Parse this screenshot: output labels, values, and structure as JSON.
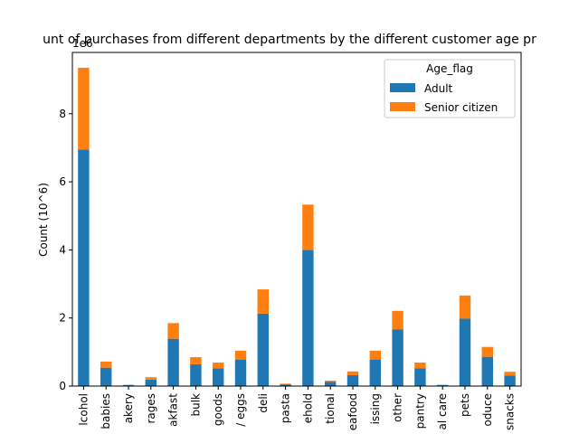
{
  "chart_data": {
    "type": "bar",
    "stacked": true,
    "title": "unt of purchases from different departments by the different customer age pr",
    "xlabel": "",
    "ylabel": "Count (10^6)",
    "y_offset_label": "1e6",
    "ylim": [
      0,
      9.8
    ],
    "yticks": [
      0,
      2,
      4,
      6,
      8
    ],
    "categories": [
      "lcohol",
      "babies",
      "akery",
      "rages",
      "akfast",
      "bulk",
      "goods",
      "/ eggs",
      "deli",
      "pasta",
      "ehold",
      "tional",
      "eafood",
      "issing",
      "other",
      "pantry",
      "al care",
      "pets",
      "oduce",
      "snacks"
    ],
    "series": [
      {
        "name": "Adult",
        "color": "#1f77b4",
        "values": [
          6.95,
          0.54,
          0.03,
          0.19,
          1.39,
          0.64,
          0.52,
          0.78,
          2.13,
          0.05,
          4.0,
          0.12,
          0.32,
          0.78,
          1.66,
          0.52,
          0.03,
          1.98,
          0.86,
          0.31
        ]
      },
      {
        "name": "Senior citizen",
        "color": "#ff7f0e",
        "values": [
          2.4,
          0.18,
          0.01,
          0.07,
          0.46,
          0.21,
          0.17,
          0.26,
          0.71,
          0.02,
          1.33,
          0.04,
          0.11,
          0.26,
          0.55,
          0.17,
          0.01,
          0.68,
          0.29,
          0.11
        ]
      }
    ],
    "legend": {
      "title": "Age_flag",
      "placement": "top-right"
    },
    "grid": false
  }
}
